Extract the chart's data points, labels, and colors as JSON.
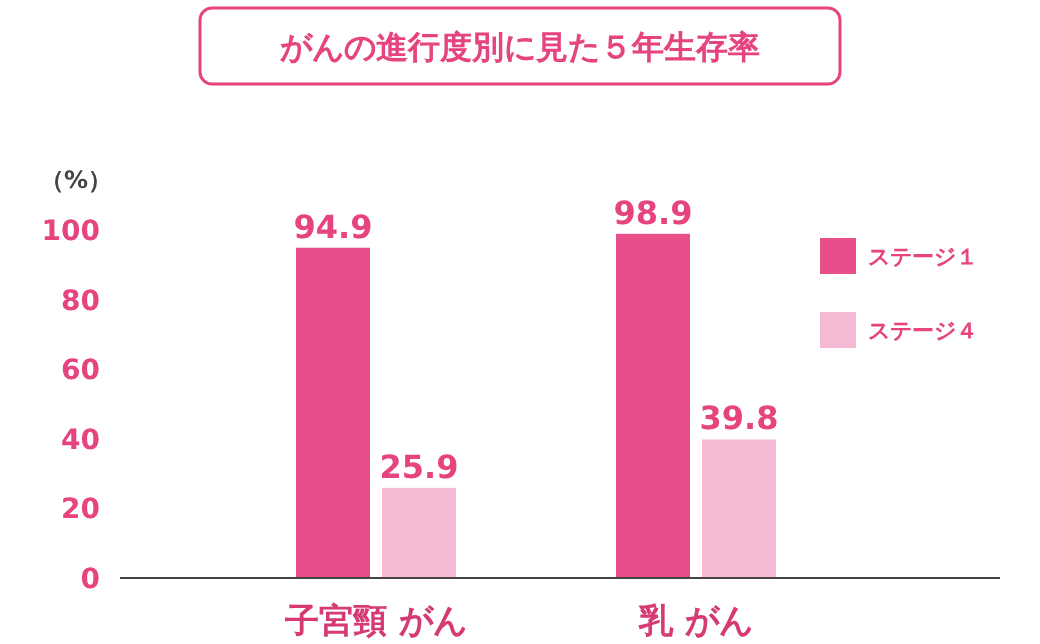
{
  "chart_data": {
    "type": "bar",
    "title": "がんの進行度別に見た５年生存率",
    "ylabel": "（%）",
    "categories": [
      "子宮頸 がん",
      "乳 がん"
    ],
    "series": [
      {
        "name": "ステージ１",
        "color": "#e84e8a",
        "values": [
          94.9,
          98.9
        ]
      },
      {
        "name": "ステージ４",
        "color": "#f4b9d3",
        "values": [
          25.9,
          39.8
        ]
      }
    ],
    "ylim": [
      0,
      100
    ],
    "yticks": [
      0,
      20,
      40,
      60,
      80,
      100
    ],
    "data_labels": true,
    "legend": "right",
    "grid": false
  }
}
